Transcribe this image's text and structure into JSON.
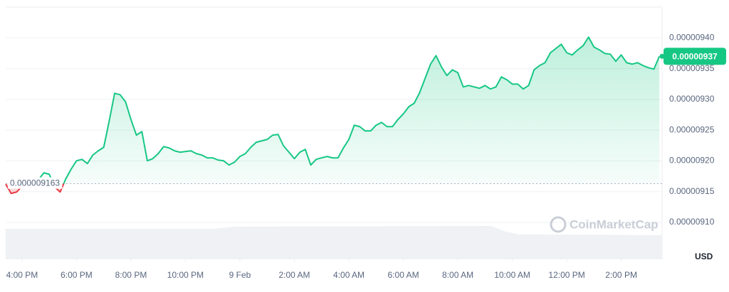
{
  "chart_data": {
    "type": "line",
    "x": [
      15.4,
      15.6,
      15.8,
      16.0,
      16.2,
      16.4,
      16.6,
      16.8,
      17.0,
      17.2,
      17.4,
      17.6,
      17.8,
      18.0,
      18.2,
      18.4,
      18.6,
      18.8,
      19.0,
      19.2,
      19.4,
      19.6,
      19.8,
      20.0,
      20.2,
      20.4,
      20.6,
      20.8,
      21.0,
      21.2,
      21.4,
      21.6,
      21.8,
      22.0,
      22.2,
      22.4,
      22.6,
      22.8,
      23.0,
      23.2,
      23.4,
      23.6,
      23.8,
      24.0,
      24.2,
      24.4,
      24.6,
      24.8,
      25.0,
      25.2,
      25.4,
      25.6,
      25.8,
      26.0,
      26.2,
      26.4,
      26.6,
      26.8,
      27.0,
      27.2,
      27.4,
      27.6,
      27.8,
      28.0,
      28.2,
      28.4,
      28.6,
      28.8,
      29.0,
      29.2,
      29.4,
      29.6,
      29.8,
      30.0,
      30.2,
      30.4,
      30.6,
      30.8,
      31.0,
      31.2,
      31.4,
      31.6,
      31.8,
      32.0,
      32.2,
      32.4,
      32.6,
      32.8,
      33.0,
      33.2,
      33.4,
      33.6,
      33.8,
      34.0,
      34.2,
      34.4,
      34.6,
      34.8,
      35.0,
      35.2,
      35.4,
      35.6,
      35.8,
      36.0,
      36.2,
      36.4,
      36.6,
      36.8,
      37.0,
      37.2,
      37.4,
      37.6,
      37.8,
      38.0,
      38.2,
      38.4,
      38.6,
      38.8,
      39.0,
      39.2,
      39.4
    ],
    "values": [
      9.1621e-06,
      9.1471e-06,
      9.1494e-06,
      9.1587e-06,
      9.1633e-06,
      9.1644e-06,
      9.1691e-06,
      9.1806e-06,
      9.1783e-06,
      9.1575e-06,
      9.1494e-06,
      9.1702e-06,
      9.1864e-06,
      9.2002e-06,
      9.2025e-06,
      9.1956e-06,
      9.2095e-06,
      9.2164e-06,
      9.2222e-06,
      9.2649e-06,
      9.3099e-06,
      9.3076e-06,
      9.2961e-06,
      9.2672e-06,
      9.2418e-06,
      9.2476e-06,
      9.2002e-06,
      9.2037e-06,
      9.2118e-06,
      9.2233e-06,
      9.221e-06,
      9.2164e-06,
      9.2141e-06,
      9.2152e-06,
      9.2164e-06,
      9.2118e-06,
      9.2095e-06,
      9.2049e-06,
      9.2049e-06,
      9.2014e-06,
      9.2002e-06,
      9.1933e-06,
      9.1979e-06,
      9.2072e-06,
      9.2118e-06,
      9.2222e-06,
      9.2303e-06,
      9.2326e-06,
      9.2349e-06,
      9.2418e-06,
      9.243e-06,
      9.2245e-06,
      9.2141e-06,
      9.2037e-06,
      9.2141e-06,
      9.2187e-06,
      9.1933e-06,
      9.2025e-06,
      9.2049e-06,
      9.2072e-06,
      9.2049e-06,
      9.2049e-06,
      9.221e-06,
      9.2349e-06,
      9.258e-06,
      9.2557e-06,
      9.2487e-06,
      9.2487e-06,
      9.258e-06,
      9.2626e-06,
      9.2557e-06,
      9.2557e-06,
      9.2672e-06,
      9.2764e-06,
      9.288e-06,
      9.2938e-06,
      9.3111e-06,
      9.3342e-06,
      9.3573e-06,
      9.3711e-06,
      9.3527e-06,
      9.3388e-06,
      9.348e-06,
      9.3434e-06,
      9.3203e-06,
      9.3226e-06,
      9.3203e-06,
      9.318e-06,
      9.3226e-06,
      9.3169e-06,
      9.3203e-06,
      9.3365e-06,
      9.3319e-06,
      9.3249e-06,
      9.3249e-06,
      9.3169e-06,
      9.3226e-06,
      9.348e-06,
      9.355e-06,
      9.3596e-06,
      9.3758e-06,
      9.3827e-06,
      9.3896e-06,
      9.3758e-06,
      9.3723e-06,
      9.3804e-06,
      9.3873e-06,
      9.4012e-06,
      9.385e-06,
      9.3804e-06,
      9.3746e-06,
      9.3734e-06,
      9.3619e-06,
      9.3723e-06,
      9.3596e-06,
      9.3573e-06,
      9.3596e-06,
      9.355e-06,
      9.3515e-06,
      9.3492e-06,
      9.37e-06
    ],
    "up_color": "#16c784",
    "down_color": "#ea3943",
    "xlim": [
      15.4,
      39.5
    ],
    "xticks": [
      {
        "value": 16,
        "label": "4:00 PM"
      },
      {
        "value": 18,
        "label": "6:00 PM"
      },
      {
        "value": 20,
        "label": "8:00 PM"
      },
      {
        "value": 22,
        "label": "10:00 PM"
      },
      {
        "value": 24,
        "label": "9 Feb"
      },
      {
        "value": 26,
        "label": "2:00 AM"
      },
      {
        "value": 28,
        "label": "4:00 AM"
      },
      {
        "value": 30,
        "label": "6:00 AM"
      },
      {
        "value": 32,
        "label": "8:00 AM"
      },
      {
        "value": 34,
        "label": "10:00 AM"
      },
      {
        "value": 36,
        "label": "12:00 PM"
      },
      {
        "value": 38,
        "label": "2:00 PM"
      }
    ],
    "ylim": [
      9.04e-06,
      9.45e-06
    ],
    "yticks": [
      {
        "value": 9.1e-06,
        "label": "0.00000910"
      },
      {
        "value": 9.15e-06,
        "label": "0.00000915"
      },
      {
        "value": 9.2e-06,
        "label": "0.00000920"
      },
      {
        "value": 9.25e-06,
        "label": "0.00000925"
      },
      {
        "value": 9.3e-06,
        "label": "0.00000930"
      },
      {
        "value": 9.35e-06,
        "label": "0.00000935"
      },
      {
        "value": 9.4e-06,
        "label": "0.00000940"
      }
    ],
    "grid": true,
    "reference_line": {
      "value": 9.163e-06,
      "label": "0.000009163"
    },
    "current_price": {
      "value": 9.37e-06,
      "label": "0.00000937"
    },
    "currency": "USD",
    "watermark": "CoinMarketCap"
  }
}
